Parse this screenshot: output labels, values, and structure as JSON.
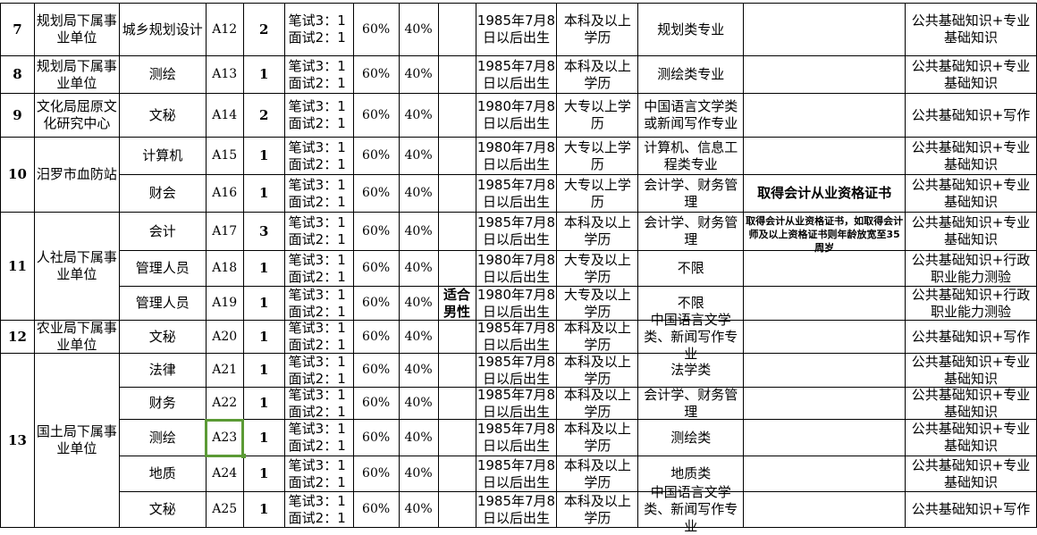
{
  "selection_color": "#5b9a35",
  "selected_code": "A23",
  "groups": [
    {
      "no": "7",
      "unit": "规划局下属事业单位",
      "positions": [
        {
          "position": "城乡规划设计",
          "code": "A12",
          "count": "2",
          "ratio": "笔试3：1\n面试2：1",
          "written": "60%",
          "interview": "40%",
          "gender": "",
          "age": "1985年7月8日以后出生",
          "education": "本科及以上学历",
          "major": "规划类专业",
          "other": "",
          "exam": "公共基础知识+专业基础知识"
        }
      ]
    },
    {
      "no": "8",
      "unit": "规划局下属事业单位",
      "positions": [
        {
          "position": "测绘",
          "code": "A13",
          "count": "1",
          "ratio": "笔试3：1\n面试2：1",
          "written": "60%",
          "interview": "40%",
          "gender": "",
          "age": "1985年7月8日以后出生",
          "education": "本科及以上学历",
          "major": "测绘类专业",
          "other": "",
          "exam": "公共基础知识+专业基础知识"
        }
      ]
    },
    {
      "no": "9",
      "unit": "文化局屈原文化研究中心",
      "positions": [
        {
          "position": "文秘",
          "code": "A14",
          "count": "2",
          "ratio": "笔试3：1\n面试2：1",
          "written": "60%",
          "interview": "40%",
          "gender": "",
          "age": "1980年7月8日以后出生",
          "education": "大专以上学历",
          "major": "中国语言文学类或新闻写作专业",
          "other": "",
          "exam": "公共基础知识+写作"
        }
      ]
    },
    {
      "no": "10",
      "unit": "汨罗市血防站",
      "positions": [
        {
          "position": "计算机",
          "code": "A15",
          "count": "1",
          "ratio": "笔试3：1\n面试2：1",
          "written": "60%",
          "interview": "40%",
          "gender": "",
          "age": "1980年7月8日以后出生",
          "education": "大专以上学历",
          "major": "计算机、信息工程类专业",
          "other": "",
          "exam": "公共基础知识+专业基础知识"
        },
        {
          "position": "财会",
          "code": "A16",
          "count": "1",
          "ratio": "笔试3：1\n面试2：1",
          "written": "60%",
          "interview": "40%",
          "gender": "",
          "age": "1985年7月8日以后出生",
          "education": "大专以上学历",
          "major": "会计学、财务管理",
          "other": "取得会计从业资格证书",
          "exam": "公共基础知识+专业基础知识"
        }
      ]
    },
    {
      "no": "11",
      "unit": "人社局下属事业单位",
      "positions": [
        {
          "position": "会计",
          "code": "A17",
          "count": "3",
          "ratio": "笔试3：1\n面试2：1",
          "written": "60%",
          "interview": "40%",
          "gender": "",
          "age": "1985年7月8日以后出生",
          "education": "本科及以上学历",
          "major": "会计学、财务管理",
          "other": "取得会计从业资格证书，如取得会计师及以上资格证书则年龄放宽至35周岁",
          "exam": "公共基础知识+专业基础知识"
        },
        {
          "position": "管理人员",
          "code": "A18",
          "count": "1",
          "ratio": "笔试3：1\n面试2：1",
          "written": "60%",
          "interview": "40%",
          "gender": "",
          "age": "1980年7月8日以后出生",
          "education": "大专及以上学历",
          "major": "不限",
          "other": "",
          "exam": "公共基础知识+行政职业能力测验"
        },
        {
          "position": "管理人员",
          "code": "A19",
          "count": "1",
          "ratio": "笔试3：1\n面试2：1",
          "written": "60%",
          "interview": "40%",
          "gender": "适合男性",
          "age": "1980年7月8日以后出生",
          "education": "大专及以上学历",
          "major": "不限",
          "other": "",
          "exam": "公共基础知识+行政职业能力测验"
        }
      ]
    },
    {
      "no": "12",
      "unit": "农业局下属事业单位",
      "positions": [
        {
          "position": "文秘",
          "code": "A20",
          "count": "1",
          "ratio": "笔试3：1\n面试2：1",
          "written": "60%",
          "interview": "40%",
          "gender": "",
          "age": "1985年7月8日以后出生",
          "education": "本科及以上学历",
          "major": "中国语言文学类、新闻写作专业",
          "other": "",
          "exam": "公共基础知识+写作"
        }
      ]
    },
    {
      "no": "13",
      "unit": "国土局下属事业单位",
      "positions": [
        {
          "position": "法律",
          "code": "A21",
          "count": "1",
          "ratio": "笔试3：1\n面试2：1",
          "written": "60%",
          "interview": "40%",
          "gender": "",
          "age": "1985年7月8日以后出生",
          "education": "本科及以上学历",
          "major": "法学类",
          "other": "",
          "exam": "公共基础知识+专业基础知识"
        },
        {
          "position": "财务",
          "code": "A22",
          "count": "1",
          "ratio": "笔试3：1\n面试2：1",
          "written": "60%",
          "interview": "40%",
          "gender": "",
          "age": "1985年7月8日以后出生",
          "education": "本科及以上学历",
          "major": "会计学、财务管理",
          "other": "",
          "exam": "公共基础知识+专业基础知识"
        },
        {
          "position": "测绘",
          "code": "A23",
          "count": "1",
          "ratio": "笔试3：1\n面试2：1",
          "written": "60%",
          "interview": "40%",
          "gender": "",
          "age": "1985年7月8日以后出生",
          "education": "本科及以上学历",
          "major": "测绘类",
          "other": "",
          "exam": "公共基础知识+专业基础知识"
        },
        {
          "position": "地质",
          "code": "A24",
          "count": "1",
          "ratio": "笔试3：1\n面试2：1",
          "written": "60%",
          "interview": "40%",
          "gender": "",
          "age": "1985年7月8日以后出生",
          "education": "本科及以上学历",
          "major": "地质类",
          "other": "",
          "exam": "公共基础知识+专业基础知识"
        },
        {
          "position": "文秘",
          "code": "A25",
          "count": "1",
          "ratio": "笔试3：1\n面试2：1",
          "written": "60%",
          "interview": "40%",
          "gender": "",
          "age": "1985年7月8日以后出生",
          "education": "本科及以上学历",
          "major": "中国语言文学类、新闻写作专业",
          "other": "",
          "exam": "公共基础知识+写作"
        }
      ]
    }
  ]
}
